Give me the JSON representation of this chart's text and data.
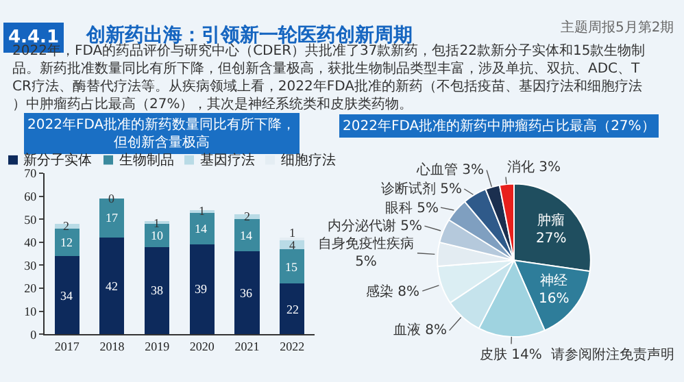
{
  "chart_data": [
    {
      "type": "other",
      "title": "创新药出海：引领新一轮医药创新周期",
      "annotations": [
        "4.4.1",
        "主题周报5月第2期",
        "2022年，FDA的药品评价与研究中心（CDER）共批准了37款新药，包括22款新分子实体和15款生物制品。新药批准数量同比有所下降，但创新含量极高，获批生物制品类型丰富，涉及单抗、双抗、ADC、TCR疗法、酶替代疗法等。从疾病领域上看，2022年FDA批准的新药（不包括疫苗、基因疗法和细胞疗法）中肿瘤药占比最高（27%），其次是神经系统类和皮肤类药物。",
        "请参阅附注免责声明"
      ]
    },
    {
      "type": "bar",
      "stacked": true,
      "title": "2022年FDA批准的新药数量同比有所下降，但创新含量极高",
      "categories": [
        "2017",
        "2018",
        "2019",
        "2020",
        "2021",
        "2022"
      ],
      "ylim": [
        0,
        70
      ],
      "yticks": [
        0,
        10,
        20,
        30,
        40,
        50,
        60,
        70
      ],
      "grid": false,
      "legend": "top",
      "series": [
        {
          "name": "新分子实体",
          "color": "#0d2a5c",
          "values": [
            34,
            42,
            38,
            39,
            36,
            22
          ],
          "value_labels": [
            "34",
            "42",
            "38",
            "39",
            "36",
            "22"
          ]
        },
        {
          "name": "生物制品",
          "color": "#3b8a9e",
          "values": [
            12,
            17,
            10,
            14,
            14,
            15
          ],
          "value_labels": [
            "12",
            "17",
            "10",
            "14",
            "14",
            "15"
          ]
        },
        {
          "name": "基因疗法",
          "color": "#b9dbe6",
          "values": [
            2,
            0,
            1,
            1,
            2,
            4
          ],
          "value_labels": [
            "2",
            "0",
            "1",
            "1",
            "2",
            "4"
          ]
        },
        {
          "name": "细胞疗法",
          "color": "#e4edf3",
          "values": [
            0,
            0,
            0,
            0,
            0,
            1
          ],
          "value_labels": [
            null,
            null,
            null,
            null,
            null,
            "1"
          ]
        }
      ]
    },
    {
      "type": "pie",
      "title": "2022年FDA批准的新药中肿瘤药占比最高（27%）",
      "categories": [
        "肿瘤",
        "神经",
        "皮肤",
        "血液",
        "感染",
        "自身免疫性疾病",
        "内分泌代谢",
        "眼科",
        "诊断试剂",
        "心血管",
        "消化"
      ],
      "values": [
        27,
        16,
        14,
        8,
        8,
        5,
        5,
        5,
        5,
        3,
        3
      ],
      "value_labels": [
        "27%",
        "16%",
        "14%",
        "8%",
        "8%",
        "5%",
        "5%",
        "5%",
        "5%",
        "3%",
        "3%"
      ],
      "colors": [
        "#1f4e5f",
        "#2e7d9a",
        "#9fd3e0",
        "#c5e3ec",
        "#dbeef3",
        "#e3ecf2",
        "#b5c9dc",
        "#7f9fc0",
        "#2f5a8a",
        "#1b2f4f",
        "#e8201c"
      ]
    }
  ]
}
